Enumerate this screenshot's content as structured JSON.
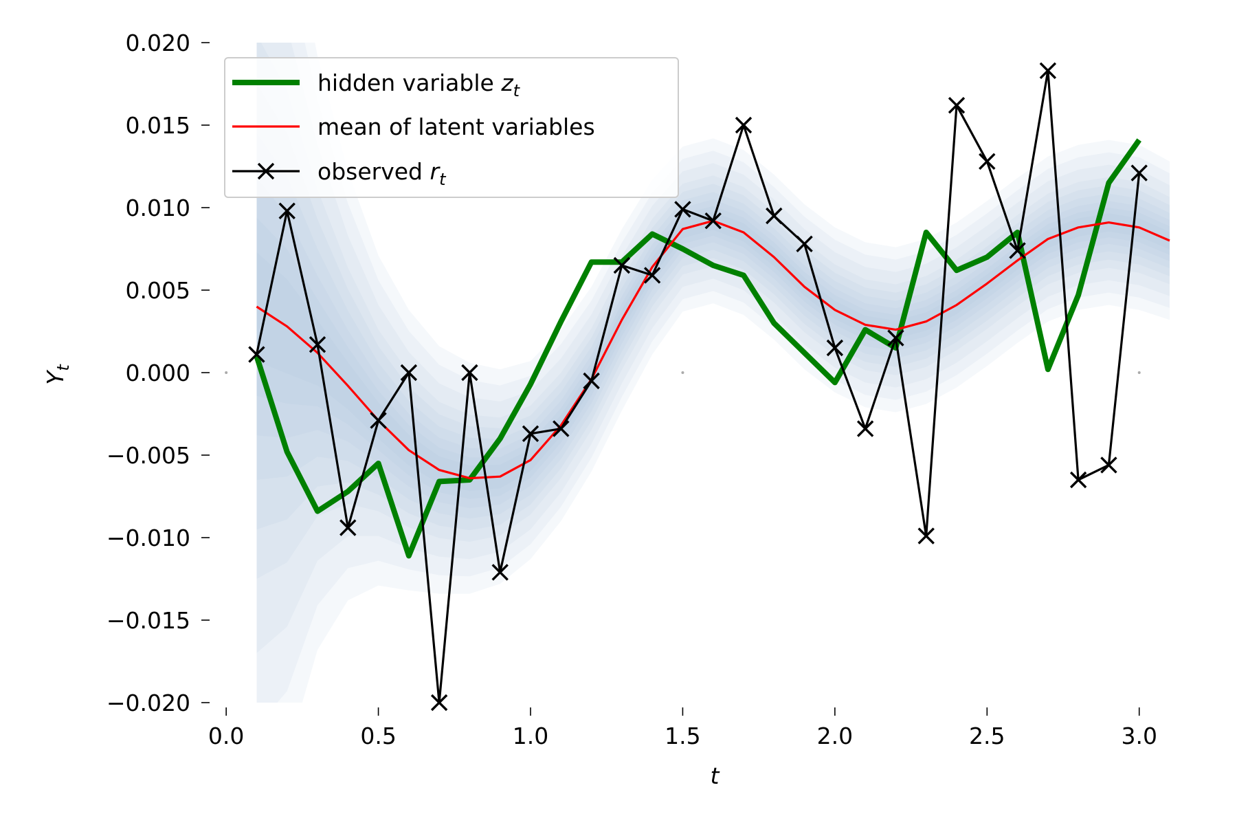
{
  "chart_data": {
    "type": "line",
    "xlabel": "t",
    "ylabel": "Y_t",
    "xlim": [
      -0.05,
      3.1
    ],
    "ylim": [
      -0.02,
      0.02
    ],
    "x_ticks": [
      0.0,
      0.5,
      1.0,
      1.5,
      2.0,
      2.5,
      3.0
    ],
    "x_tick_labels": [
      "0.0",
      "0.5",
      "1.0",
      "1.5",
      "2.0",
      "2.5",
      "3.0"
    ],
    "y_ticks": [
      0.02,
      0.015,
      0.01,
      0.005,
      0.0,
      -0.005,
      -0.01,
      -0.015,
      -0.02
    ],
    "y_tick_labels": [
      "0.020",
      "0.015",
      "0.010",
      "0.005",
      "0.000",
      "−0.005",
      "−0.010",
      "−0.015",
      "−0.020"
    ],
    "grid": false,
    "legend_position": "top-left",
    "band_color": "#a4bedb",
    "series": [
      {
        "name": "hidden variable",
        "subscript": "t",
        "symbol": "z",
        "color": "#008000",
        "x": [
          0.1,
          0.2,
          0.3,
          0.4,
          0.5,
          0.6,
          0.7,
          0.8,
          0.9,
          1.0,
          1.1,
          1.2,
          1.3,
          1.4,
          1.5,
          1.6,
          1.7,
          1.8,
          1.9,
          2.0,
          2.1,
          2.2,
          2.3,
          2.4,
          2.5,
          2.6,
          2.7,
          2.8,
          2.9,
          3.0
        ],
        "values": [
          0.001,
          -0.0048,
          -0.0084,
          -0.0072,
          -0.0055,
          -0.0111,
          -0.0066,
          -0.0065,
          -0.004,
          -0.0007,
          0.0031,
          0.0067,
          0.0067,
          0.0084,
          0.0075,
          0.0065,
          0.0059,
          0.003,
          0.0012,
          -0.0006,
          0.0026,
          0.0015,
          0.0085,
          0.0062,
          0.007,
          0.0085,
          0.0002,
          0.0047,
          0.0115,
          0.0141
        ]
      },
      {
        "name": "mean of latent variables",
        "color": "#ff0000",
        "x": [
          0.1,
          0.2,
          0.3,
          0.4,
          0.5,
          0.6,
          0.7,
          0.8,
          0.9,
          1.0,
          1.1,
          1.2,
          1.3,
          1.4,
          1.5,
          1.6,
          1.7,
          1.8,
          1.9,
          2.0,
          2.1,
          2.2,
          2.3,
          2.4,
          2.5,
          2.6,
          2.7,
          2.8,
          2.9,
          3.0,
          3.1
        ],
        "values": [
          0.004,
          0.0028,
          0.0012,
          -0.0008,
          -0.0029,
          -0.0047,
          -0.0059,
          -0.0064,
          -0.0063,
          -0.0053,
          -0.0032,
          -0.0004,
          0.0032,
          0.0064,
          0.0087,
          0.0092,
          0.0085,
          0.007,
          0.0052,
          0.0038,
          0.0029,
          0.0026,
          0.0031,
          0.0041,
          0.0054,
          0.0068,
          0.0081,
          0.0088,
          0.0091,
          0.0088,
          0.008
        ]
      },
      {
        "name": "observed",
        "subscript": "t",
        "symbol": "r",
        "color": "#000000",
        "marker": "x",
        "x": [
          0.1,
          0.2,
          0.3,
          0.4,
          0.5,
          0.6,
          0.7,
          0.8,
          0.9,
          1.0,
          1.1,
          1.2,
          1.3,
          1.4,
          1.5,
          1.6,
          1.7,
          1.8,
          1.9,
          2.0,
          2.1,
          2.2,
          2.3,
          2.4,
          2.5,
          2.6,
          2.7,
          2.8,
          2.9,
          3.0
        ],
        "values": [
          0.0011,
          0.0098,
          0.0017,
          -0.0094,
          -0.0029,
          0.0,
          -0.02,
          0.0,
          -0.0121,
          -0.0037,
          -0.0034,
          -0.0005,
          0.0065,
          0.0059,
          0.0099,
          0.0092,
          0.015,
          0.0095,
          0.0078,
          0.0015,
          -0.0034,
          0.0021,
          -0.0099,
          0.0162,
          0.0128,
          0.0074,
          0.0183,
          -0.0065,
          -0.0056,
          0.0121
        ]
      }
    ],
    "band": {
      "x": [
        0.1,
        0.2,
        0.3,
        0.4,
        0.5,
        0.6,
        0.7,
        0.8,
        0.9,
        1.0,
        1.1,
        1.2,
        1.3,
        1.4,
        1.5,
        1.6,
        1.7,
        1.8,
        1.9,
        2.0,
        2.1,
        2.2,
        2.3,
        2.4,
        2.5,
        2.6,
        2.7,
        2.8,
        2.9,
        3.0,
        3.1
      ],
      "halfwidth": [
        0.03,
        0.026,
        0.018,
        0.013,
        0.01,
        0.0085,
        0.0075,
        0.007,
        0.0065,
        0.006,
        0.0058,
        0.0056,
        0.0055,
        0.0053,
        0.005,
        0.005,
        0.005,
        0.005,
        0.005,
        0.005,
        0.005,
        0.005,
        0.005,
        0.005,
        0.005,
        0.005,
        0.005,
        0.005,
        0.005,
        0.005,
        0.0048
      ]
    }
  }
}
